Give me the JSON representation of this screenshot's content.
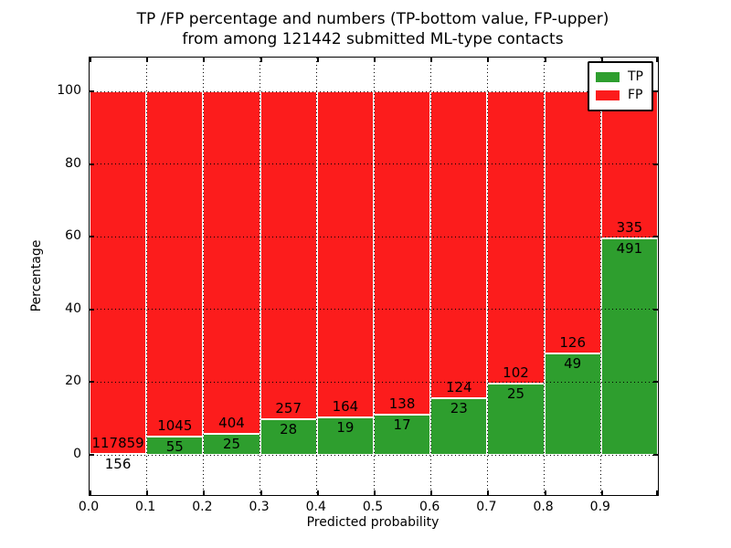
{
  "title": {
    "line1": "TP /FP percentage and numbers (TP-bottom value, FP-upper)",
    "line2": "from among 121442 submitted ML-type contacts"
  },
  "axes": {
    "xlabel": "Predicted probability",
    "ylabel": "Percentage",
    "xticks": [
      "0.0",
      "0.1",
      "0.2",
      "0.3",
      "0.4",
      "0.5",
      "0.6",
      "0.7",
      "0.8",
      "0.9"
    ],
    "yticks": [
      "0",
      "20",
      "40",
      "60",
      "80",
      "100"
    ]
  },
  "legend": {
    "items": [
      {
        "label": "TP",
        "color": "#2e9e2e"
      },
      {
        "label": "FP",
        "color": "#fc1c1c"
      }
    ]
  },
  "colors": {
    "tp": "#2e9e2e",
    "fp": "#fc1c1c",
    "grid": "#000000",
    "background": "#ffffff"
  },
  "chart_data": {
    "type": "bar",
    "stacked": true,
    "normalized": "each 0.1-wide probability bin scaled to 100%",
    "title": "TP /FP percentage and numbers (TP-bottom value, FP-upper) from among 121442 submitted ML-type contacts",
    "xlabel": "Predicted probability",
    "ylabel": "Percentage",
    "x_bins": [
      [
        0.0,
        0.1
      ],
      [
        0.1,
        0.2
      ],
      [
        0.2,
        0.3
      ],
      [
        0.3,
        0.4
      ],
      [
        0.4,
        0.5
      ],
      [
        0.5,
        0.6
      ],
      [
        0.6,
        0.7
      ],
      [
        0.7,
        0.8
      ],
      [
        0.8,
        0.9
      ],
      [
        0.9,
        1.0
      ]
    ],
    "series": [
      {
        "name": "TP",
        "color": "#2e9e2e",
        "counts": [
          156,
          55,
          25,
          28,
          19,
          17,
          23,
          25,
          49,
          491
        ]
      },
      {
        "name": "FP",
        "color": "#fc1c1c",
        "counts": [
          117859,
          1045,
          404,
          257,
          164,
          138,
          124,
          102,
          126,
          335
        ]
      }
    ],
    "yticks": [
      0,
      20,
      40,
      60,
      80,
      100
    ],
    "ylim_visible": [
      -11,
      109
    ],
    "xlim": [
      0.0,
      1.0
    ],
    "grid": "dotted black, drawn over bars",
    "legend_position": "upper right"
  }
}
